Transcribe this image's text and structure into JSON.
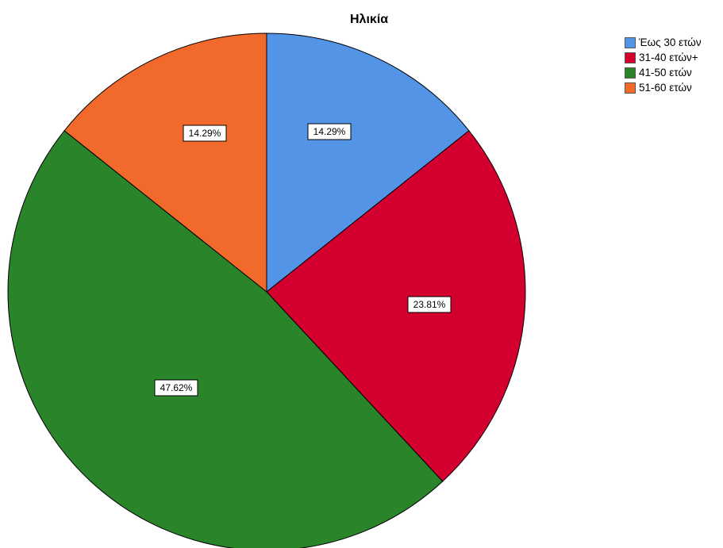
{
  "chart_data": {
    "type": "pie",
    "title": "Ηλικία",
    "categories": [
      "Έως 30 ετών",
      "31-40 ετών+",
      "41-50 ετών",
      "51-60 ετών"
    ],
    "values": [
      14.29,
      23.81,
      47.62,
      14.29
    ],
    "value_labels": [
      "14.29%",
      "23.81%",
      "47.62%",
      "14.29%"
    ],
    "colors": [
      "#5494e6",
      "#d3002f",
      "#2a8429",
      "#f26a2b"
    ],
    "start_angle": "12 o'clock",
    "direction": "clockwise",
    "legend_position": "top-right"
  }
}
